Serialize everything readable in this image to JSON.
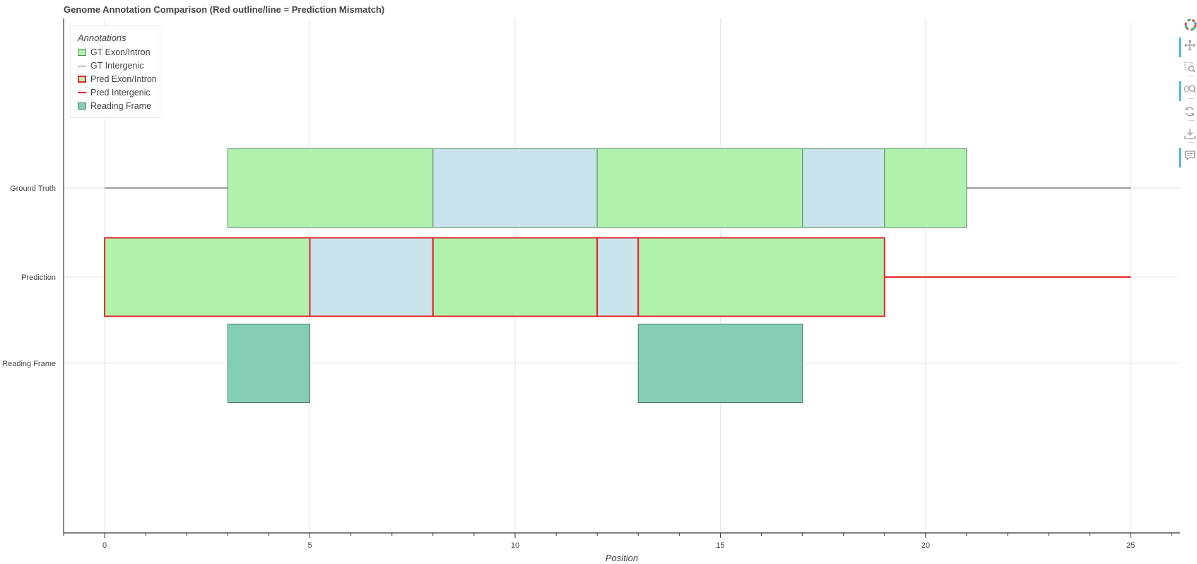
{
  "chart_data": {
    "type": "bar",
    "orientation": "horizontal-intervals",
    "title": "Genome Annotation Comparison (Red outline/line = Prediction Mismatch)",
    "xlabel": "Position",
    "ylabel": "",
    "xlim": [
      -1.0,
      26.2
    ],
    "x_ticks": [
      0,
      5,
      10,
      15,
      20,
      25
    ],
    "categories": [
      "Ground Truth",
      "Prediction",
      "Reading Frame"
    ],
    "grid": true,
    "legend": {
      "title": "Annotations",
      "placement": "top-left",
      "items": [
        {
          "label": "GT Exon/Intron",
          "kind": "box",
          "fill": "#b0f2ab",
          "stroke": "#5a8a5a"
        },
        {
          "label": "GT Intergenic",
          "kind": "line",
          "stroke": "#666666"
        },
        {
          "label": "Pred Exon/Intron",
          "kind": "box",
          "fill": "#b0f2ab",
          "stroke": "#e3262b"
        },
        {
          "label": "Pred Intergenic",
          "kind": "line",
          "stroke": "#e3262b"
        },
        {
          "label": "Reading Frame",
          "kind": "box",
          "fill": "#84cfb4",
          "stroke": "#4a7a6a"
        }
      ]
    },
    "series": [
      {
        "track": "Ground Truth",
        "lines": [
          {
            "start": 0,
            "end": 3,
            "type": "intergenic"
          },
          {
            "start": 21,
            "end": 25,
            "type": "intergenic"
          }
        ],
        "segments": [
          {
            "start": 3,
            "end": 8,
            "type": "exon"
          },
          {
            "start": 8,
            "end": 12,
            "type": "intron"
          },
          {
            "start": 12,
            "end": 17,
            "type": "exon"
          },
          {
            "start": 17,
            "end": 19,
            "type": "intron"
          },
          {
            "start": 19,
            "end": 21,
            "type": "exon"
          }
        ]
      },
      {
        "track": "Prediction",
        "lines": [
          {
            "start": 19,
            "end": 25,
            "type": "intergenic"
          }
        ],
        "segments": [
          {
            "start": 0,
            "end": 5,
            "type": "exon"
          },
          {
            "start": 5,
            "end": 8,
            "type": "intron"
          },
          {
            "start": 8,
            "end": 12,
            "type": "exon"
          },
          {
            "start": 12,
            "end": 13,
            "type": "intron"
          },
          {
            "start": 13,
            "end": 19,
            "type": "exon"
          }
        ]
      },
      {
        "track": "Reading Frame",
        "lines": [],
        "segments": [
          {
            "start": 3,
            "end": 5,
            "type": "frame"
          },
          {
            "start": 13,
            "end": 17,
            "type": "frame"
          }
        ]
      }
    ],
    "colors": {
      "exon": "#b0f2ab",
      "intron": "#c8e3ec",
      "frame": "#84cfb4",
      "gt_stroke": "#5a8a5a",
      "pred_stroke": "#e3262b",
      "frame_stroke": "#4a7a6a",
      "intergenic_gt": "#666666",
      "intergenic_pred": "#e3262b"
    }
  },
  "toolbar": {
    "tools": [
      {
        "name": "bokeh-logo-icon",
        "active": false
      },
      {
        "name": "pan-tool-icon",
        "active": true
      },
      {
        "name": "box-zoom-tool-icon",
        "active": false
      },
      {
        "name": "wheel-zoom-tool-icon",
        "active": true
      },
      {
        "name": "reset-tool-icon",
        "active": false
      },
      {
        "name": "save-tool-icon",
        "active": false
      },
      {
        "name": "hover-tool-icon",
        "active": true
      }
    ]
  }
}
